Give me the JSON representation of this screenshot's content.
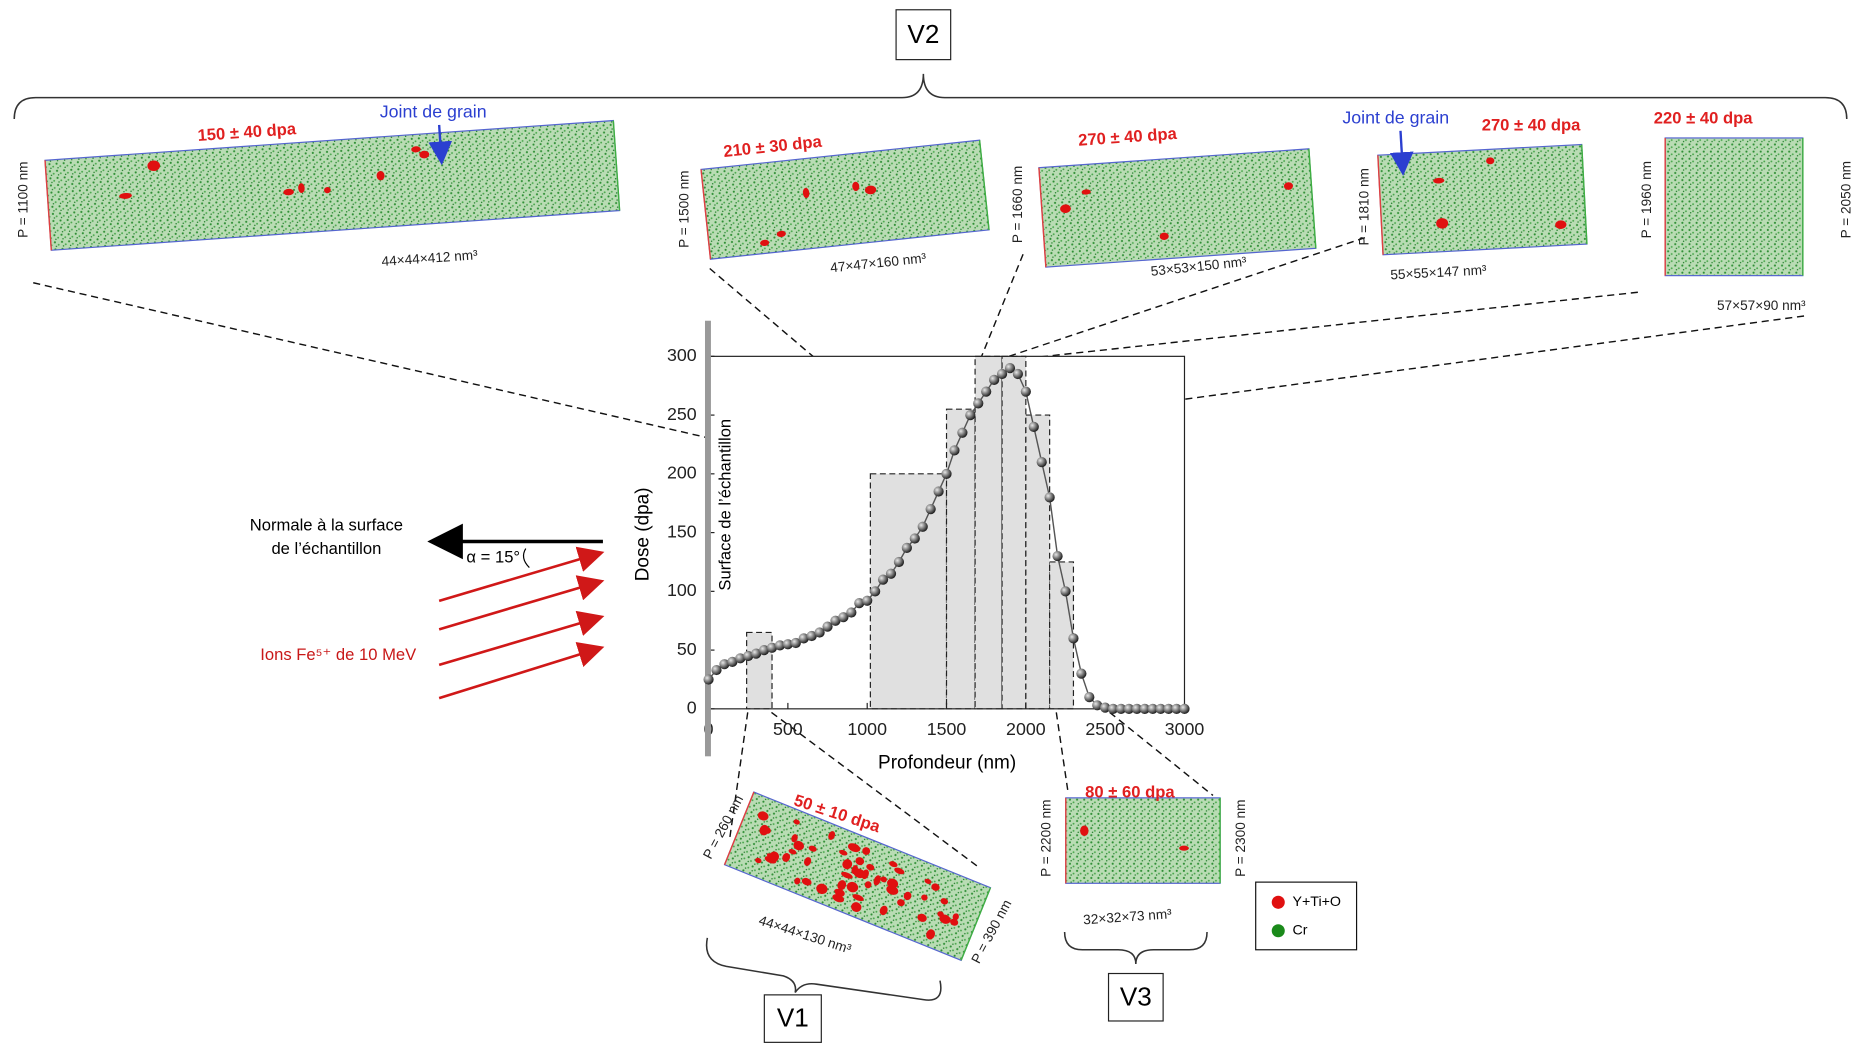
{
  "chart_data": {
    "type": "line",
    "x_label": "Profondeur (nm)",
    "y_label": "Dose (dpa)",
    "surface_label": "Surface de l’échantillon",
    "xlim": [
      0,
      3000
    ],
    "ylim": [
      0,
      300
    ],
    "xticks": [
      0,
      500,
      1000,
      1500,
      2000,
      2500,
      3000
    ],
    "yticks": [
      0,
      50,
      100,
      150,
      200,
      250,
      300
    ],
    "color": "#555555",
    "x": [
      0,
      50,
      100,
      150,
      200,
      250,
      300,
      350,
      400,
      450,
      500,
      550,
      600,
      650,
      700,
      750,
      800,
      850,
      900,
      950,
      1000,
      1050,
      1100,
      1150,
      1200,
      1250,
      1300,
      1350,
      1400,
      1450,
      1500,
      1550,
      1600,
      1650,
      1700,
      1750,
      1800,
      1850,
      1900,
      1950,
      2000,
      2050,
      2100,
      2150,
      2200,
      2250,
      2300,
      2350,
      2400,
      2450,
      2500,
      2550,
      2600,
      2650,
      2700,
      2750,
      2800,
      2850,
      2900,
      2950,
      3000
    ],
    "values": [
      25,
      33,
      38,
      40,
      43,
      45,
      47,
      50,
      52,
      54,
      55,
      56,
      60,
      62,
      65,
      70,
      75,
      78,
      82,
      90,
      92,
      100,
      110,
      115,
      125,
      137,
      145,
      155,
      170,
      185,
      200,
      220,
      235,
      250,
      260,
      270,
      280,
      285,
      290,
      285,
      270,
      240,
      210,
      180,
      130,
      100,
      60,
      30,
      10,
      3,
      1,
      0,
      0,
      0,
      0,
      0,
      0,
      0,
      0,
      0,
      0
    ],
    "bars": {
      "x0": [
        240,
        1020,
        1500,
        1680,
        1850,
        2000,
        2150
      ],
      "x1": [
        400,
        1500,
        1680,
        1850,
        2000,
        2150,
        2300
      ],
      "values": [
        65,
        200,
        255,
        300,
        300,
        250,
        125
      ],
      "color": "#e0e0e0"
    }
  },
  "group_labels": [
    "V1",
    "V2",
    "V3"
  ],
  "panels": [
    {
      "dose": "150 ± 40 dpa",
      "depth": "P = 1100 nm",
      "size": "44×44×412 nm³",
      "annotation": "Joint de grain"
    },
    {
      "dose": "210 ± 30 dpa",
      "depth": "P = 1500 nm",
      "size": "47×47×160 nm³"
    },
    {
      "dose": "270 ± 40 dpa",
      "depth": "P = 1660 nm",
      "size": "53×53×150 nm³"
    },
    {
      "dose": "270 ± 40 dpa",
      "depth": "P = 1810 nm",
      "size": "55×55×147 nm³",
      "annotation": "Joint de grain"
    },
    {
      "dose": "220 ± 40 dpa",
      "depth": "P = 1960 nm",
      "depth_end": "P = 2050 nm",
      "size": "57×57×90 nm³"
    },
    {
      "dose": "50 ± 10 dpa",
      "depth": "P = 260 nm",
      "depth_end": "P = 390 nm",
      "size": "44×44×130 nm³"
    },
    {
      "dose": "80 ± 60 dpa",
      "depth": "P = 2200 nm",
      "depth_end": "P = 2300 nm",
      "size": "32×32×73 nm³"
    }
  ],
  "beam": {
    "normal": [
      "Normale à la surface",
      "de l’échantillon"
    ],
    "angle": "α = 15°",
    "ions": "Ions Fe⁵⁺ de 10 MeV"
  },
  "legend": [
    {
      "label": "Y+Ti+O",
      "color": "#e01010"
    },
    {
      "label": "Cr",
      "color": "#1a8a1a"
    }
  ]
}
